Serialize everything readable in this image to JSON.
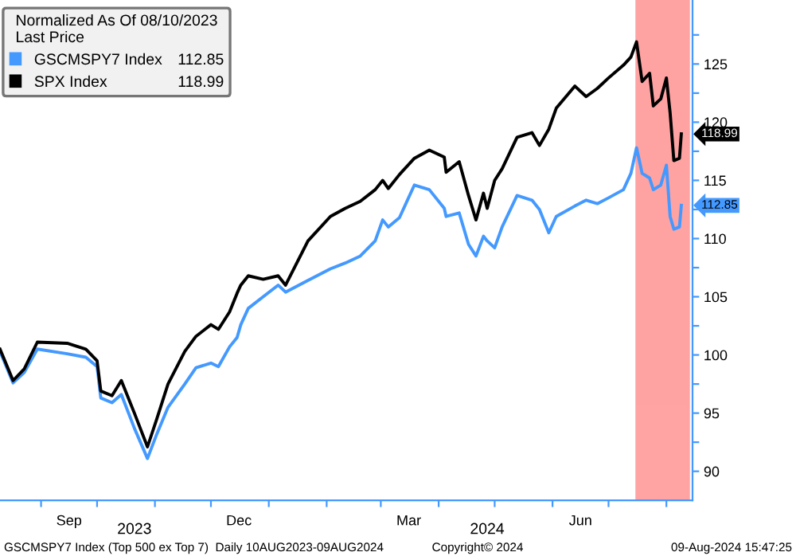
{
  "chart_data": {
    "type": "line",
    "legend_title": "Normalized As Of 08/10/2023\nLast Price",
    "legend": "top left",
    "x": [
      "2023-08-10",
      "2023-08-17",
      "2023-08-23",
      "2023-08-30",
      "2023-09-15",
      "2023-09-25",
      "2023-10-01",
      "2023-10-03",
      "2023-10-09",
      "2023-10-14",
      "2023-10-21",
      "2023-10-28",
      "2023-11-02",
      "2023-11-08",
      "2023-11-17",
      "2023-11-23",
      "2023-12-01",
      "2023-12-05",
      "2023-12-11",
      "2023-12-15",
      "2023-12-17",
      "2023-12-21",
      "2023-12-29",
      "2024-01-06",
      "2024-01-10",
      "2024-01-22",
      "2024-02-03",
      "2024-02-11",
      "2024-02-19",
      "2024-02-27",
      "2024-03-02",
      "2024-03-05",
      "2024-03-11",
      "2024-03-19",
      "2024-03-27",
      "2024-04-04",
      "2024-04-05",
      "2024-04-12",
      "2024-04-17",
      "2024-04-21",
      "2024-04-25",
      "2024-04-27",
      "2024-05-01",
      "2024-05-05",
      "2024-05-13",
      "2024-05-21",
      "2024-05-25",
      "2024-05-30",
      "2024-06-03",
      "2024-06-13",
      "2024-06-19",
      "2024-06-25",
      "2024-07-01",
      "2024-07-09",
      "2024-07-13",
      "2024-07-16",
      "2024-07-19",
      "2024-07-23",
      "2024-07-25",
      "2024-07-29",
      "2024-08-01",
      "2024-08-03",
      "2024-08-05",
      "2024-08-08",
      "2024-08-09"
    ],
    "series": [
      {
        "name": "GSCMSPY7 Index",
        "color": "#4499ff",
        "values": [
          100.3,
          97.6,
          98.5,
          100.5,
          100.1,
          99.8,
          99.0,
          96.3,
          95.9,
          96.6,
          93.7,
          91.1,
          93.2,
          95.5,
          97.5,
          98.9,
          99.3,
          99.0,
          100.7,
          101.5,
          102.6,
          104.0,
          105.0,
          106.0,
          105.4,
          106.4,
          107.4,
          107.9,
          108.5,
          109.8,
          111.6,
          111.0,
          111.8,
          114.6,
          114.2,
          112.6,
          111.9,
          112.2,
          109.5,
          108.5,
          110.2,
          109.8,
          109.2,
          111.0,
          113.7,
          113.3,
          112.5,
          110.5,
          111.9,
          112.8,
          113.3,
          113.0,
          113.5,
          114.2,
          115.6,
          117.8,
          115.6,
          115.2,
          114.2,
          114.6,
          116.3,
          111.9,
          110.8,
          111.0,
          112.85
        ],
        "value_labels": [
          null,
          null,
          null,
          null,
          null,
          null,
          null,
          null,
          null,
          null,
          null,
          null,
          null,
          null,
          null,
          null,
          null,
          null,
          null,
          null,
          null,
          null,
          null,
          null,
          null,
          null,
          null,
          null,
          null,
          null,
          null,
          null,
          null,
          null,
          null,
          null,
          null,
          null,
          null,
          null,
          null,
          null,
          null,
          null,
          null,
          null,
          null,
          null,
          null,
          null,
          null,
          null,
          null,
          null,
          null,
          null,
          null,
          null,
          null,
          null,
          null,
          null,
          null,
          null,
          "112.85"
        ]
      },
      {
        "name": "SPX Index",
        "color": "#000000",
        "values": [
          100.5,
          97.8,
          98.8,
          101.1,
          101.0,
          100.5,
          99.5,
          96.9,
          96.5,
          97.8,
          95.0,
          92.1,
          94.5,
          97.5,
          100.3,
          101.6,
          102.6,
          102.2,
          103.7,
          105.3,
          106.0,
          106.8,
          106.5,
          106.8,
          106.0,
          109.8,
          111.9,
          112.6,
          113.2,
          114.2,
          115.0,
          114.3,
          115.5,
          116.9,
          117.6,
          117.0,
          115.7,
          116.6,
          113.7,
          111.6,
          113.9,
          112.6,
          115.0,
          116.0,
          118.7,
          119.1,
          118.0,
          119.4,
          121.2,
          123.1,
          122.2,
          122.9,
          123.8,
          124.9,
          125.6,
          126.9,
          123.5,
          124.2,
          121.4,
          122.0,
          123.8,
          120.8,
          116.7,
          116.9,
          118.99
        ],
        "value_labels": [
          null,
          null,
          null,
          null,
          null,
          null,
          null,
          null,
          null,
          null,
          null,
          null,
          null,
          null,
          null,
          null,
          null,
          null,
          null,
          null,
          null,
          null,
          null,
          null,
          null,
          null,
          null,
          null,
          null,
          null,
          null,
          null,
          null,
          null,
          null,
          null,
          null,
          null,
          null,
          null,
          null,
          null,
          null,
          null,
          null,
          null,
          null,
          null,
          null,
          null,
          null,
          null,
          null,
          null,
          null,
          null,
          null,
          null,
          null,
          null,
          null,
          null,
          null,
          null,
          "118.99"
        ]
      }
    ],
    "xlim": [
      "2023-08-10",
      "2024-08-15"
    ],
    "xticks": [
      {
        "value": "2023-09-01",
        "label": null
      },
      {
        "value": "2023-09-16",
        "label": "Sep"
      },
      {
        "value": "2023-10-01",
        "label": null
      },
      {
        "value": "2023-11-01",
        "label": null
      },
      {
        "value": "2023-12-01",
        "label": null
      },
      {
        "value": "2023-12-16",
        "label": "Dec"
      },
      {
        "value": "2024-01-01",
        "label": null
      },
      {
        "value": "2024-02-01",
        "label": null
      },
      {
        "value": "2024-03-01",
        "label": null
      },
      {
        "value": "2024-03-16",
        "label": "Mar"
      },
      {
        "value": "2024-04-01",
        "label": null
      },
      {
        "value": "2024-05-01",
        "label": null
      },
      {
        "value": "2024-06-01",
        "label": null
      },
      {
        "value": "2024-06-16",
        "label": "Jun"
      },
      {
        "value": "2024-07-01",
        "label": null
      },
      {
        "value": "2024-08-01",
        "label": null
      }
    ],
    "x2lim": [
      "2023-08-10",
      "2024-08-15"
    ],
    "x2ticks": [
      {
        "value": "2023-10-21",
        "label": "2023"
      },
      {
        "value": "2024-04-27",
        "label": "2024"
      }
    ],
    "ylim": [
      87.5,
      130.5
    ],
    "yticks": [
      90,
      {
        "value": 92.5,
        "label": null
      },
      95,
      {
        "value": 97.5,
        "label": null
      },
      100,
      {
        "value": 102.5,
        "label": null
      },
      105,
      {
        "value": 107.5,
        "label": null
      },
      110,
      {
        "value": 112.5,
        "label": null
      },
      115,
      {
        "value": 117.5,
        "label": null
      },
      120,
      {
        "value": 122.5,
        "label": null
      },
      125,
      {
        "value": 127.5,
        "label": null
      }
    ],
    "bands": [
      {
        "axis": "x",
        "from": "2024-07-16",
        "to": "2024-08-13",
        "color": "#ff6666"
      }
    ],
    "grid": false,
    "line_style": "solid",
    "marker": "none",
    "annotations": [
      "GSCMSPY7 Index (Top 500 ex Top 7)  Daily 10AUG2023-09AUG2024",
      "Copyright© 2024",
      "09-Aug-2024 15:47:25"
    ]
  }
}
